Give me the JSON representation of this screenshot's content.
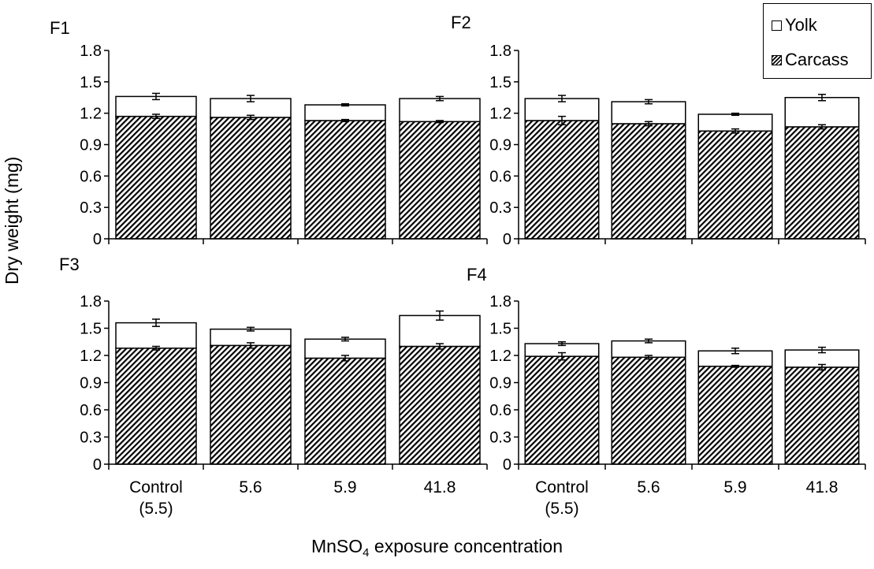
{
  "figure": {
    "ylabel": "Dry weight (mg)",
    "xlabel_main": "MnSO",
    "xlabel_sub": "4",
    "xlabel_rest": " exposure concentration",
    "legend": [
      {
        "label": "Yolk",
        "pattern": "white"
      },
      {
        "label": "Carcass",
        "pattern": "hatched"
      }
    ],
    "colors": {
      "outline": "#000000",
      "yolk_fill": "#ffffff",
      "carcass_hatch": "#000000"
    }
  },
  "chart_data": [
    {
      "type": "bar",
      "stacked": true,
      "title": "F1",
      "categories": [
        "Control\n(5.5)",
        "5.6",
        "5.9",
        "41.8"
      ],
      "show_tick_labels": false,
      "ylim": [
        0,
        1.8
      ],
      "yticks": [
        "0",
        "0.3",
        "0.6",
        "0.9",
        "1.2",
        "1.5",
        "1.8"
      ],
      "series": [
        {
          "name": "Carcass",
          "values": [
            1.17,
            1.16,
            1.13,
            1.12
          ],
          "errors": [
            0.02,
            0.02,
            0.01,
            0.01
          ]
        },
        {
          "name": "Yolk",
          "values": [
            0.19,
            0.18,
            0.15,
            0.22
          ],
          "errors": [
            0.03,
            0.03,
            0.01,
            0.02
          ]
        }
      ]
    },
    {
      "type": "bar",
      "stacked": true,
      "title": "F2",
      "categories": [
        "Control\n(5.5)",
        "5.6",
        "5.9",
        "41.8"
      ],
      "show_tick_labels": false,
      "ylim": [
        0,
        1.8
      ],
      "yticks": [
        "0",
        "0.3",
        "0.6",
        "0.9",
        "1.2",
        "1.5",
        "1.8"
      ],
      "series": [
        {
          "name": "Carcass",
          "values": [
            1.13,
            1.1,
            1.03,
            1.07
          ],
          "errors": [
            0.04,
            0.02,
            0.02,
            0.02
          ]
        },
        {
          "name": "Yolk",
          "values": [
            0.21,
            0.21,
            0.16,
            0.28
          ],
          "errors": [
            0.03,
            0.02,
            0.01,
            0.03
          ]
        }
      ]
    },
    {
      "type": "bar",
      "stacked": true,
      "title": "F3",
      "categories": [
        "Control\n(5.5)",
        "5.6",
        "5.9",
        "41.8"
      ],
      "show_tick_labels": true,
      "ylim": [
        0,
        1.8
      ],
      "yticks": [
        "0",
        "0.3",
        "0.6",
        "0.9",
        "1.2",
        "1.5",
        "1.8"
      ],
      "series": [
        {
          "name": "Carcass",
          "values": [
            1.28,
            1.31,
            1.17,
            1.3
          ],
          "errors": [
            0.02,
            0.03,
            0.03,
            0.03
          ]
        },
        {
          "name": "Yolk",
          "values": [
            0.28,
            0.18,
            0.21,
            0.34
          ],
          "errors": [
            0.04,
            0.02,
            0.02,
            0.05
          ]
        }
      ]
    },
    {
      "type": "bar",
      "stacked": true,
      "title": "F4",
      "categories": [
        "Control\n(5.5)",
        "5.6",
        "5.9",
        "41.8"
      ],
      "show_tick_labels": true,
      "ylim": [
        0,
        1.8
      ],
      "yticks": [
        "0",
        "0.3",
        "0.6",
        "0.9",
        "1.2",
        "1.5",
        "1.8"
      ],
      "series": [
        {
          "name": "Carcass",
          "values": [
            1.19,
            1.18,
            1.08,
            1.07
          ],
          "errors": [
            0.04,
            0.02,
            0.01,
            0.03
          ]
        },
        {
          "name": "Yolk",
          "values": [
            0.14,
            0.18,
            0.17,
            0.19
          ],
          "errors": [
            0.02,
            0.02,
            0.03,
            0.03
          ]
        }
      ]
    }
  ]
}
